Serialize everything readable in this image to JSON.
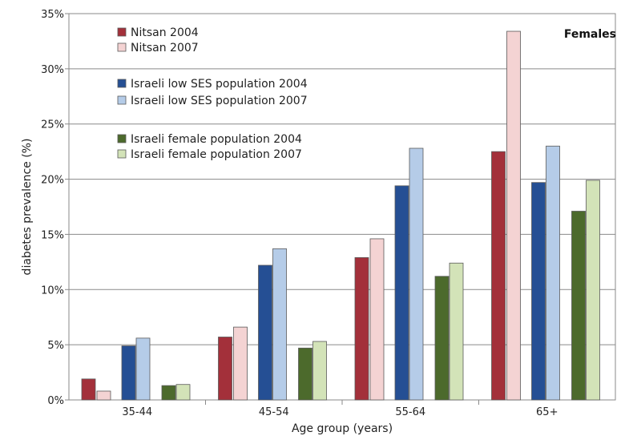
{
  "chart_data": {
    "type": "bar",
    "title": "Females",
    "xlabel": "Age group (years)",
    "ylabel": "diabetes prevalence (%)",
    "ylim": [
      0,
      35
    ],
    "ytick_step": 5,
    "ytick_suffix": "%",
    "grid": "horizontal",
    "legend_position": "top-left",
    "categories": [
      "35-44",
      "45-54",
      "55-64",
      "65+"
    ],
    "series": [
      {
        "name": "Nitsan 2004",
        "color": "#a3303a",
        "values": [
          1.9,
          5.7,
          12.9,
          22.5
        ]
      },
      {
        "name": "Nitsan 2007",
        "color": "#f4d3d3",
        "values": [
          0.8,
          6.6,
          14.6,
          33.4
        ]
      },
      {
        "name": "Israeli low SES population 2004",
        "color": "#254f94",
        "values": [
          4.9,
          12.2,
          19.4,
          19.7
        ]
      },
      {
        "name": "Israeli low SES population 2007",
        "color": "#b5cce8",
        "values": [
          5.6,
          13.7,
          22.8,
          23.0
        ]
      },
      {
        "name": "Israeli female population 2004",
        "color": "#4c6a2c",
        "values": [
          1.3,
          4.7,
          11.2,
          17.1
        ]
      },
      {
        "name": "Israeli female population 2007",
        "color": "#d3e3b8",
        "values": [
          1.4,
          5.3,
          12.4,
          19.9
        ]
      }
    ]
  }
}
